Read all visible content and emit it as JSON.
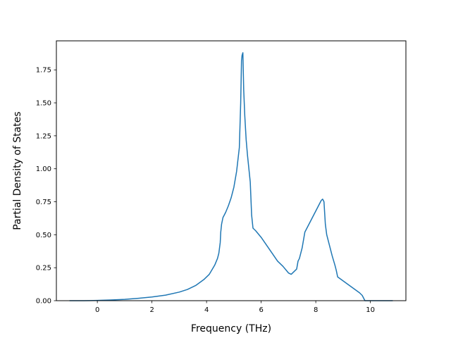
{
  "chart_data": {
    "type": "line",
    "title": "",
    "xlabel": "Frequency (THz)",
    "ylabel": "Partial Density of States",
    "xlim": [
      -1.5,
      11.3
    ],
    "ylim": [
      0.0,
      1.97
    ],
    "xticks": [
      0,
      2,
      4,
      6,
      8,
      10
    ],
    "xtick_labels": [
      "0",
      "2",
      "4",
      "6",
      "8",
      "10"
    ],
    "yticks": [
      0.0,
      0.25,
      0.5,
      0.75,
      1.0,
      1.25,
      1.5,
      1.75
    ],
    "ytick_labels": [
      "0.00",
      "0.25",
      "0.50",
      "0.75",
      "1.00",
      "1.25",
      "1.50",
      "1.75"
    ],
    "grid": false,
    "legend": "none",
    "line_color": "#1f77b4",
    "series": [
      {
        "x": [
          -1.0,
          -0.5,
          0.0,
          0.5,
          1.0,
          1.5,
          2.0,
          2.5,
          3.0,
          3.3,
          3.6,
          3.9,
          4.1,
          4.3,
          4.4,
          4.45,
          4.5,
          4.52,
          4.55,
          4.6,
          4.7,
          4.8,
          4.9,
          5.0,
          5.1,
          5.2,
          5.25,
          5.28,
          5.3,
          5.33,
          5.36,
          5.4,
          5.45,
          5.5,
          5.6,
          5.65,
          5.7,
          5.8,
          6.0,
          6.2,
          6.4,
          6.6,
          6.8,
          7.0,
          7.1,
          7.15,
          7.2,
          7.3,
          7.35,
          7.4,
          7.5,
          7.6,
          7.7,
          7.8,
          7.9,
          8.0,
          8.1,
          8.2,
          8.25,
          8.3,
          8.35,
          8.4,
          8.5,
          8.6,
          8.7,
          8.75,
          8.8,
          9.0,
          9.2,
          9.4,
          9.6,
          9.7,
          9.8,
          9.85,
          10.0,
          10.5,
          10.8
        ],
        "y": [
          0.0,
          0.0,
          0.002,
          0.005,
          0.01,
          0.018,
          0.028,
          0.042,
          0.065,
          0.085,
          0.115,
          0.16,
          0.2,
          0.27,
          0.32,
          0.36,
          0.44,
          0.52,
          0.58,
          0.63,
          0.67,
          0.72,
          0.78,
          0.86,
          0.98,
          1.16,
          1.5,
          1.82,
          1.86,
          1.88,
          1.6,
          1.4,
          1.22,
          1.1,
          0.9,
          0.65,
          0.55,
          0.53,
          0.48,
          0.42,
          0.36,
          0.3,
          0.26,
          0.21,
          0.2,
          0.21,
          0.22,
          0.24,
          0.3,
          0.32,
          0.4,
          0.52,
          0.56,
          0.6,
          0.64,
          0.68,
          0.72,
          0.76,
          0.77,
          0.75,
          0.58,
          0.5,
          0.42,
          0.34,
          0.27,
          0.23,
          0.18,
          0.15,
          0.12,
          0.09,
          0.06,
          0.04,
          0.0,
          0.0,
          0.0,
          0.0,
          0.0
        ]
      }
    ]
  }
}
